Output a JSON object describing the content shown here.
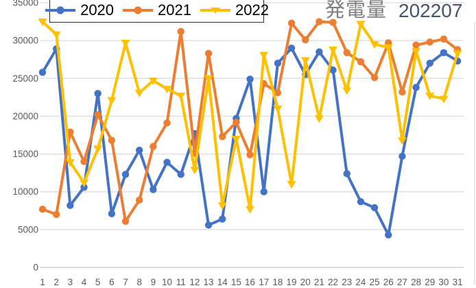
{
  "chart_data": {
    "type": "line",
    "title": "発電量",
    "subtitle": "202207",
    "x": [
      1,
      2,
      3,
      4,
      5,
      6,
      7,
      8,
      9,
      10,
      11,
      12,
      13,
      14,
      15,
      16,
      17,
      18,
      19,
      20,
      21,
      22,
      23,
      24,
      25,
      26,
      27,
      28,
      29,
      30,
      31
    ],
    "series": [
      {
        "name": "2020",
        "color": "#4472C4",
        "marker": "circle",
        "values": [
          25800,
          28900,
          8200,
          10600,
          23000,
          7100,
          12300,
          15500,
          10300,
          13900,
          12300,
          17700,
          5600,
          6400,
          19700,
          24900,
          10000,
          27000,
          29000,
          25500,
          28500,
          26100,
          12400,
          8700,
          7900,
          4300,
          14700,
          23800,
          27000,
          28400,
          27300
        ]
      },
      {
        "name": "2021",
        "color": "#ED7D31",
        "marker": "circle",
        "values": [
          7700,
          7000,
          17900,
          14000,
          20200,
          16800,
          6100,
          8900,
          16000,
          19100,
          31200,
          15100,
          28300,
          17300,
          19200,
          14900,
          24300,
          23100,
          32300,
          30100,
          32500,
          32400,
          28400,
          27200,
          25100,
          29700,
          23200,
          29400,
          29800,
          30200,
          28800
        ]
      },
      {
        "name": "2022",
        "color": "#FFC000",
        "marker": "triangle-down",
        "values": [
          32500,
          30800,
          13900,
          11200,
          15700,
          22100,
          29700,
          23100,
          24700,
          23600,
          22700,
          12900,
          25000,
          8200,
          17000,
          7700,
          28100,
          21000,
          11000,
          27400,
          19700,
          28800,
          23400,
          32200,
          29500,
          29100,
          16800,
          28600,
          22700,
          22300,
          28300
        ]
      }
    ],
    "ylim": [
      0,
      35000
    ],
    "y_ticks": [
      0,
      5000,
      10000,
      15000,
      20000,
      25000,
      30000,
      35000
    ],
    "grid": true,
    "legend_position": "top",
    "colors": {
      "gridline": "#D9D9D9",
      "axis_line": "#C6C6C6",
      "tick_label": "#595959",
      "title": "#7F7F7F",
      "subtitle": "#44546A",
      "plot_right_border": "#D9D9D9"
    }
  }
}
